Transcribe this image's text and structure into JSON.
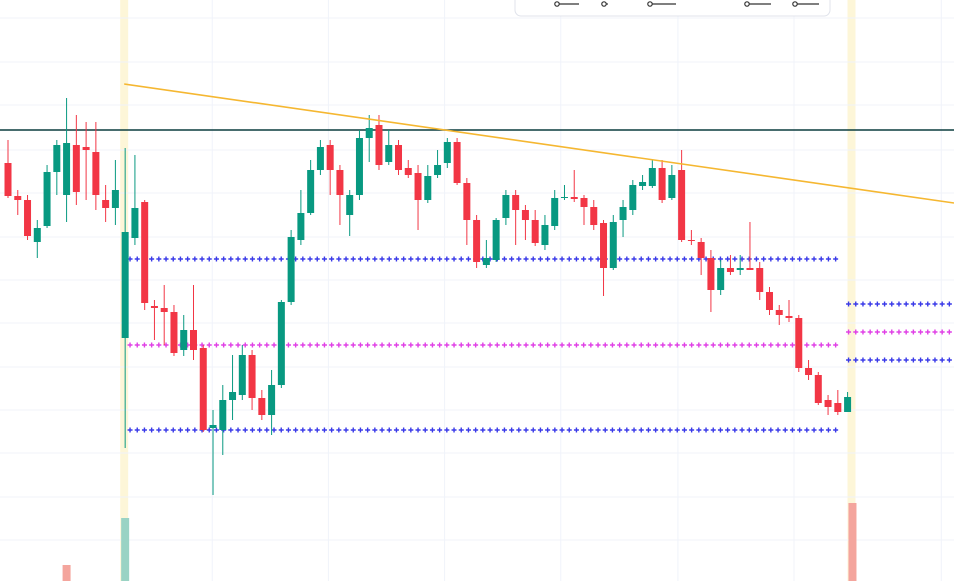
{
  "chart_data": {
    "type": "candlestick",
    "xlim": [
      -0.82,
      96.9
    ],
    "ylim": [
      19,
      600
    ],
    "xticks": [
      20.92,
      32.82,
      44.72,
      56.62,
      68.62,
      80.51,
      95.6
    ],
    "yticks": [
      582,
      538,
      495,
      450,
      407,
      363,
      320,
      277,
      233,
      190,
      147,
      103,
      60
    ],
    "grid": true,
    "up_color": "#089981",
    "down_color": "#f23645",
    "open": [
      437,
      404,
      400,
      358,
      374,
      428,
      405,
      455,
      453,
      448,
      400,
      392,
      262,
      362,
      398,
      294,
      292,
      288,
      250,
      270,
      252,
      172,
      170,
      200,
      205,
      245,
      202,
      185,
      215,
      298,
      360,
      387,
      430,
      455,
      430,
      385,
      405,
      462,
      475,
      438,
      455,
      432,
      427,
      400,
      425,
      437,
      458,
      417,
      380,
      335,
      340,
      382,
      405,
      390,
      380,
      355,
      374,
      402,
      403,
      402,
      393,
      377,
      332,
      380,
      390,
      414,
      414,
      432,
      402,
      430,
      360,
      358,
      342,
      310,
      332,
      330,
      332,
      332,
      308,
      290,
      284,
      282,
      232,
      225,
      200,
      197,
      188
    ],
    "high": [
      460,
      410,
      405,
      380,
      435,
      460,
      502,
      485,
      478,
      478,
      415,
      440,
      452,
      445,
      400,
      300,
      315,
      295,
      285,
      315,
      255,
      190,
      215,
      245,
      255,
      250,
      210,
      230,
      300,
      370,
      410,
      440,
      460,
      460,
      435,
      410,
      470,
      485,
      485,
      470,
      460,
      440,
      435,
      435,
      450,
      462,
      462,
      422,
      385,
      360,
      382,
      410,
      410,
      395,
      390,
      385,
      410,
      415,
      430,
      405,
      400,
      380,
      385,
      400,
      420,
      425,
      440,
      440,
      435,
      450,
      370,
      362,
      350,
      340,
      345,
      345,
      378,
      338,
      313,
      295,
      300,
      285,
      240,
      228,
      205,
      210,
      208
    ],
    "low": [
      402,
      385,
      360,
      342,
      372,
      405,
      378,
      395,
      400,
      390,
      378,
      375,
      152,
      355,
      290,
      260,
      255,
      244,
      244,
      240,
      168,
      105,
      145,
      180,
      200,
      190,
      180,
      165,
      212,
      295,
      355,
      385,
      425,
      405,
      375,
      364,
      400,
      438,
      430,
      435,
      425,
      422,
      370,
      397,
      422,
      432,
      415,
      355,
      332,
      332,
      338,
      375,
      355,
      360,
      354,
      350,
      370,
      400,
      398,
      375,
      370,
      304,
      330,
      363,
      385,
      410,
      412,
      397,
      400,
      358,
      355,
      325,
      288,
      305,
      325,
      325,
      330,
      300,
      285,
      275,
      278,
      228,
      220,
      195,
      185,
      185,
      188
    ],
    "close": [
      404,
      400,
      364,
      372,
      428,
      455,
      457,
      408,
      450,
      405,
      392,
      410,
      368,
      392,
      297,
      292,
      288,
      247,
      270,
      250,
      170,
      175,
      200,
      208,
      245,
      202,
      185,
      215,
      298,
      363,
      387,
      430,
      453,
      430,
      405,
      405,
      462,
      472,
      435,
      455,
      430,
      425,
      400,
      424,
      435,
      458,
      417,
      380,
      338,
      342,
      380,
      405,
      390,
      380,
      357,
      375,
      402,
      403,
      401,
      393,
      375,
      332,
      378,
      393,
      415,
      418,
      432,
      400,
      425,
      360,
      359,
      342,
      310,
      332,
      328,
      332,
      330,
      308,
      290,
      285,
      282,
      232,
      225,
      197,
      193,
      188,
      203
    ],
    "levels": [
      {
        "value": 470,
        "color": "#0b3d3f",
        "style": "solid",
        "from": -0.82,
        "to": 96.9
      },
      {
        "value": 341,
        "color": "#3a3ae8",
        "style": "cross",
        "from": 12.5,
        "to": 85.5
      },
      {
        "value": 255,
        "color": "#e040e6",
        "style": "cross",
        "from": 12.5,
        "to": 85.5
      },
      {
        "value": 170,
        "color": "#3a3ae8",
        "style": "cross",
        "from": 12.5,
        "to": 85.5
      },
      {
        "value": 296,
        "color": "#3a3ae8",
        "style": "cross",
        "from": 86.1,
        "to": 96.9
      },
      {
        "value": 268,
        "color": "#e040e6",
        "style": "cross",
        "from": 86.1,
        "to": 96.9
      },
      {
        "value": 240,
        "color": "#3a3ae8",
        "style": "cross",
        "from": 86.1,
        "to": 96.9
      }
    ],
    "trendline": {
      "x": [
        11.9,
        96.9
      ],
      "values": [
        516,
        397
      ],
      "color": "#f5b731"
    },
    "highlights": {
      "x": [
        11.9,
        86.4
      ],
      "color": "#fdf6d8"
    },
    "volume": {
      "x": [
        6,
        12,
        86.5
      ],
      "values": [
        16,
        63,
        78
      ],
      "colors": [
        "#f4a59d",
        "#9ad3c4",
        "#f4a59d"
      ],
      "lim": [
        0,
        581
      ]
    }
  }
}
